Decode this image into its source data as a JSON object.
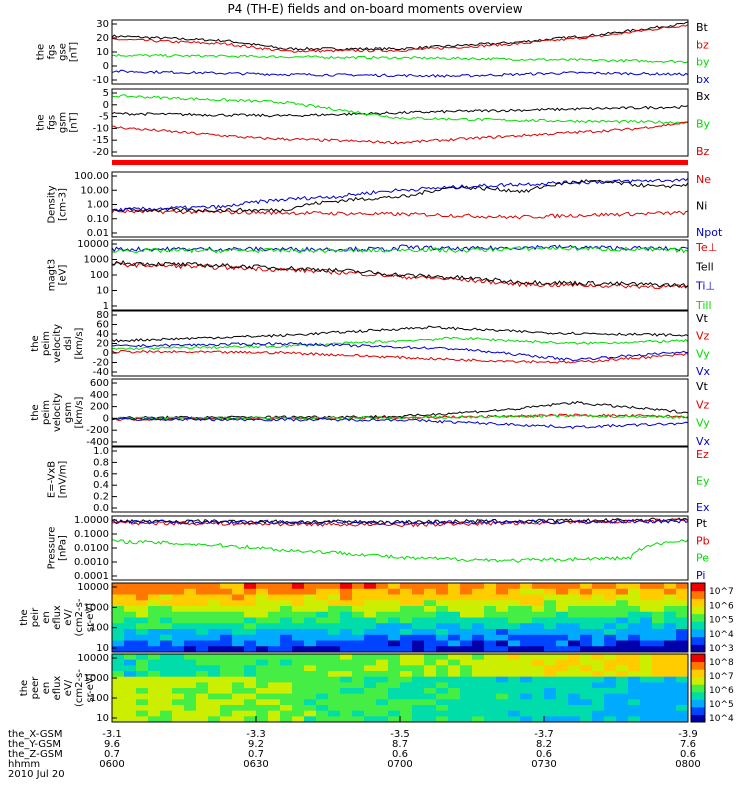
{
  "title": "P4 (TH-E) fields and on-board moments overview",
  "colors": {
    "black": "#000000",
    "red": "#dd0000",
    "green": "#00dd00",
    "blue": "#0000cc",
    "bar": "#ff0000"
  },
  "chart_data": [
    {
      "type": "line",
      "panel": "fgs_gse",
      "ylabel": [
        "the",
        "fgs",
        "gse",
        "[nT]"
      ],
      "ylim": [
        -10,
        30
      ],
      "yticks": [
        "30",
        "20",
        "10",
        "0",
        "-10"
      ],
      "series": [
        {
          "name": "Bt",
          "color": "black",
          "points": [
            [
              0,
              20
            ],
            [
              0.2,
              17
            ],
            [
              0.3,
              12
            ],
            [
              0.5,
              12
            ],
            [
              0.7,
              16
            ],
            [
              0.85,
              21
            ],
            [
              1,
              28
            ]
          ]
        },
        {
          "name": "bz",
          "color": "red",
          "points": [
            [
              0,
              18
            ],
            [
              0.2,
              15
            ],
            [
              0.3,
              10.5
            ],
            [
              0.5,
              11
            ],
            [
              0.7,
              15
            ],
            [
              0.85,
              20
            ],
            [
              1,
              27
            ]
          ]
        },
        {
          "name": "by",
          "color": "green",
          "points": [
            [
              0,
              8
            ],
            [
              0.3,
              7
            ],
            [
              0.6,
              6
            ],
            [
              0.8,
              5
            ],
            [
              1,
              4
            ]
          ]
        },
        {
          "name": "bx",
          "color": "blue",
          "points": [
            [
              0,
              -2
            ],
            [
              0.3,
              -4
            ],
            [
              0.6,
              -5
            ],
            [
              0.8,
              -3
            ],
            [
              1,
              -4
            ]
          ]
        }
      ]
    },
    {
      "type": "line",
      "panel": "fgs_gsm",
      "ylabel": [
        "the",
        "fgs",
        "gsm",
        "[nT]"
      ],
      "ylim": [
        -22,
        8
      ],
      "yticks": [
        "5",
        "0",
        "-5",
        "-10",
        "-15",
        "-20"
      ],
      "series": [
        {
          "name": "Bx",
          "color": "black",
          "points": [
            [
              0,
              -3
            ],
            [
              0.3,
              -4
            ],
            [
              0.6,
              -2
            ],
            [
              0.8,
              -1
            ],
            [
              1,
              0
            ]
          ]
        },
        {
          "name": "By",
          "color": "green",
          "points": [
            [
              0,
              5
            ],
            [
              0.3,
              2
            ],
            [
              0.5,
              -5
            ],
            [
              0.7,
              -6
            ],
            [
              1,
              -7
            ]
          ]
        },
        {
          "name": "Bz",
          "color": "red",
          "points": [
            [
              0,
              -9
            ],
            [
              0.25,
              -14
            ],
            [
              0.5,
              -16
            ],
            [
              0.7,
              -13
            ],
            [
              0.9,
              -10
            ],
            [
              1,
              -7
            ]
          ]
        }
      ]
    },
    {
      "type": "line",
      "panel": "density",
      "ylabel": [
        "Density",
        "[cm-3]"
      ],
      "log": true,
      "ylim": [
        0.01,
        200
      ],
      "yticks": [
        "100.00",
        "10.00",
        "1.00",
        "0.10",
        "0.01"
      ],
      "series": [
        {
          "name": "Ne",
          "color": "red",
          "points": [
            [
              0,
              0.5
            ],
            [
              0.3,
              0.4
            ],
            [
              0.55,
              0.3
            ],
            [
              0.7,
              0.2
            ],
            [
              0.85,
              0.3
            ],
            [
              1,
              0.4
            ]
          ]
        },
        {
          "name": "Ni",
          "color": "black",
          "points": [
            [
              0,
              0.6
            ],
            [
              0.3,
              0.6
            ],
            [
              0.52,
              5
            ],
            [
              0.6,
              20
            ],
            [
              0.72,
              10
            ],
            [
              0.82,
              50
            ],
            [
              0.95,
              20
            ],
            [
              1,
              30
            ]
          ]
        },
        {
          "name": "Npot",
          "color": "blue",
          "points": [
            [
              0,
              0.6
            ],
            [
              0.2,
              1
            ],
            [
              0.4,
              5
            ],
            [
              0.6,
              20
            ],
            [
              0.8,
              40
            ],
            [
              1,
              60
            ]
          ]
        }
      ]
    },
    {
      "type": "line",
      "panel": "temperature",
      "ylabel": [
        "magt3",
        "[eV]"
      ],
      "log": true,
      "ylim": [
        1,
        10000
      ],
      "yticks": [
        "10000",
        "1000",
        "100",
        "10",
        "1"
      ],
      "series": [
        {
          "name": "Te⊥",
          "color": "red",
          "points": [
            [
              0,
              400
            ],
            [
              0.3,
              200
            ],
            [
              0.5,
              80
            ],
            [
              0.7,
              30
            ],
            [
              1,
              20
            ]
          ]
        },
        {
          "name": "Tell",
          "color": "black",
          "points": [
            [
              0,
              500
            ],
            [
              0.3,
              250
            ],
            [
              0.5,
              100
            ],
            [
              0.7,
              40
            ],
            [
              1,
              25
            ]
          ]
        },
        {
          "name": "Ti⊥",
          "color": "blue",
          "points": [
            [
              0.5,
              4000
            ],
            [
              0.6,
              3000
            ],
            [
              0.75,
              4000
            ],
            [
              1,
              3000
            ]
          ]
        },
        {
          "name": "Till",
          "color": "green",
          "points": [
            [
              0.5,
              3000
            ],
            [
              0.6,
              2500
            ],
            [
              0.75,
              3500
            ],
            [
              1,
              2500
            ]
          ]
        }
      ]
    },
    {
      "type": "line",
      "panel": "velocity_dsl",
      "ylabel": [
        "the",
        "peim",
        "velocity",
        "dsl",
        "[km/s]"
      ],
      "ylim": [
        -40,
        80
      ],
      "yticks": [
        "80",
        "60",
        "40",
        "20",
        "0",
        "-20",
        "-40"
      ],
      "series": [
        {
          "name": "Vt",
          "color": "black",
          "points": [
            [
              0,
              25
            ],
            [
              0.3,
              35
            ],
            [
              0.55,
              50
            ],
            [
              0.75,
              40
            ],
            [
              1,
              35
            ]
          ]
        },
        {
          "name": "Vz",
          "color": "red",
          "points": [
            [
              0,
              5
            ],
            [
              0.3,
              3
            ],
            [
              0.6,
              -10
            ],
            [
              0.8,
              -15
            ],
            [
              1,
              0
            ]
          ]
        },
        {
          "name": "Vy",
          "color": "green",
          "points": [
            [
              0,
              10
            ],
            [
              0.3,
              15
            ],
            [
              0.6,
              30
            ],
            [
              0.8,
              20
            ],
            [
              1,
              25
            ]
          ]
        },
        {
          "name": "Vx",
          "color": "blue",
          "points": [
            [
              0,
              15
            ],
            [
              0.3,
              20
            ],
            [
              0.6,
              10
            ],
            [
              0.8,
              -10
            ],
            [
              1,
              5
            ]
          ]
        }
      ]
    },
    {
      "type": "line",
      "panel": "velocity_gsm",
      "ylabel": [
        "the",
        "peim",
        "velocity",
        "gsm",
        "[km/s]"
      ],
      "ylim": [
        -400,
        600
      ],
      "yticks": [
        "600",
        "400",
        "200",
        "0",
        "-200",
        "-400"
      ],
      "series": [
        {
          "name": "Vt",
          "color": "black",
          "points": [
            [
              0,
              20
            ],
            [
              0.5,
              40
            ],
            [
              0.7,
              150
            ],
            [
              0.8,
              250
            ],
            [
              1,
              100
            ]
          ]
        },
        {
          "name": "Vz",
          "color": "red",
          "points": [
            [
              0,
              0
            ],
            [
              0.5,
              20
            ],
            [
              0.8,
              60
            ],
            [
              1,
              40
            ]
          ]
        },
        {
          "name": "Vy",
          "color": "green",
          "points": [
            [
              0,
              10
            ],
            [
              0.5,
              20
            ],
            [
              0.8,
              50
            ],
            [
              1,
              30
            ]
          ]
        },
        {
          "name": "Vx",
          "color": "blue",
          "points": [
            [
              0,
              0
            ],
            [
              0.5,
              -10
            ],
            [
              0.7,
              -80
            ],
            [
              0.8,
              -120
            ],
            [
              1,
              -60
            ]
          ]
        }
      ]
    },
    {
      "type": "line",
      "panel": "efield",
      "ylabel": [
        "E=-VxB",
        "[mV/m]"
      ],
      "ylim": [
        0,
        1
      ],
      "yticks": [
        "1.0",
        "0.8",
        "0.6",
        "0.4",
        "0.2",
        "0.0"
      ],
      "series": [
        {
          "name": "Ez",
          "color": "red",
          "points": []
        },
        {
          "name": "Ey",
          "color": "green",
          "points": []
        },
        {
          "name": "Ex",
          "color": "blue",
          "points": []
        }
      ]
    },
    {
      "type": "line",
      "panel": "pressure",
      "ylabel": [
        "Pressure",
        "[nPa]"
      ],
      "log": true,
      "ylim": [
        0.0001,
        2
      ],
      "yticks": [
        "1.0000",
        "0.1000",
        "0.0100",
        "0.0010",
        "0.0001"
      ],
      "series": [
        {
          "name": "Pt",
          "color": "black",
          "points": [
            [
              0,
              0.9
            ],
            [
              0.5,
              0.8
            ],
            [
              0.85,
              1
            ],
            [
              1,
              1.2
            ]
          ]
        },
        {
          "name": "Pb",
          "color": "red",
          "points": [
            [
              0,
              0.7
            ],
            [
              0.5,
              0.5
            ],
            [
              0.85,
              0.8
            ],
            [
              1,
              1.1
            ]
          ]
        },
        {
          "name": "Pe",
          "color": "green",
          "points": [
            [
              0,
              0.04
            ],
            [
              0.3,
              0.01
            ],
            [
              0.5,
              0.003
            ],
            [
              0.7,
              0.002
            ],
            [
              0.9,
              0.003
            ],
            [
              1,
              0.05
            ]
          ]
        },
        {
          "name": "Pi",
          "color": "blue",
          "points": [
            [
              0,
              0.8
            ],
            [
              0.5,
              0.7
            ],
            [
              1,
              0.9
            ]
          ]
        }
      ]
    },
    {
      "type": "heatmap",
      "panel": "peir",
      "ylabel": [
        "the",
        "peir",
        "en",
        "eflux",
        "eV/",
        "(cm2-s-",
        "sr-eV)"
      ],
      "yticks": [
        "10000",
        "1000",
        "100",
        "10"
      ],
      "colorbar": [
        "10^7",
        "10^6",
        "10^5",
        "10^4",
        "10^3"
      ]
    },
    {
      "type": "heatmap",
      "panel": "peer",
      "ylabel": [
        "the",
        "peer",
        "en",
        "eflux",
        "eV/",
        "(cm2-s-",
        "sr-eV)"
      ],
      "yticks": [
        "10000",
        "1000",
        "100",
        "10"
      ],
      "colorbar": [
        "10^8",
        "10^7",
        "10^6",
        "10^5",
        "10^4"
      ]
    }
  ],
  "xaxis": {
    "tick_positions": [
      0,
      0.25,
      0.5,
      0.75,
      1
    ],
    "rows": [
      {
        "label": "the_X-GSM",
        "values": [
          "-3.1",
          "-3.3",
          "-3.5",
          "-3.7",
          "-3.9"
        ]
      },
      {
        "label": "the_Y-GSM",
        "values": [
          "9.6",
          "9.2",
          "8.7",
          "8.2",
          "7.6"
        ]
      },
      {
        "label": "the_Z-GSM",
        "values": [
          "0.7",
          "0.7",
          "0.6",
          "0.6",
          "0.6"
        ]
      },
      {
        "label": "hhmm",
        "values": [
          "0600",
          "0630",
          "0700",
          "0730",
          "0800"
        ]
      }
    ],
    "date": "2010 Jul 20"
  }
}
